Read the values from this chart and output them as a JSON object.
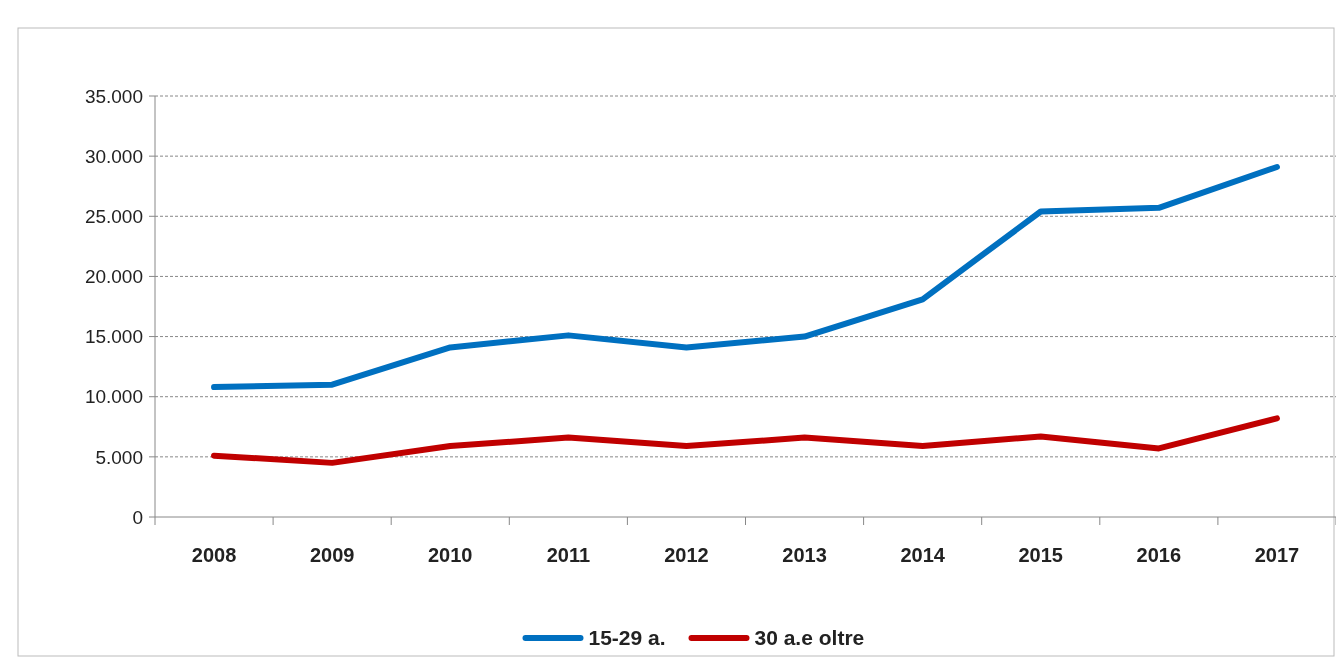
{
  "chart_data": {
    "type": "line",
    "categories": [
      "2008",
      "2009",
      "2010",
      "2011",
      "2012",
      "2013",
      "2014",
      "2015",
      "2016",
      "2017"
    ],
    "series": [
      {
        "name": "15-29 a.",
        "color": "#0070c0",
        "values": [
          10800,
          11000,
          14100,
          15100,
          14100,
          15000,
          18100,
          25400,
          25700,
          29100
        ]
      },
      {
        "name": "30 a.e oltre",
        "color": "#c00000",
        "values": [
          5100,
          4500,
          5900,
          6600,
          5900,
          6600,
          5900,
          6700,
          5700,
          8200
        ]
      }
    ],
    "ylim": [
      0,
      35000
    ],
    "yticks": [
      0,
      {
        "value": 5000,
        "label": "5.000"
      },
      {
        "value": 10000,
        "label": "10.000"
      },
      {
        "value": 15000,
        "label": "15.000"
      },
      {
        "value": 20000,
        "label": "20.000"
      },
      {
        "value": 25000,
        "label": "25.000"
      },
      {
        "value": 30000,
        "label": "30.000"
      },
      {
        "value": 35000,
        "label": "35.000"
      }
    ],
    "grid": "y",
    "legend": "bottom",
    "marker": "none",
    "line_style": "solid"
  }
}
